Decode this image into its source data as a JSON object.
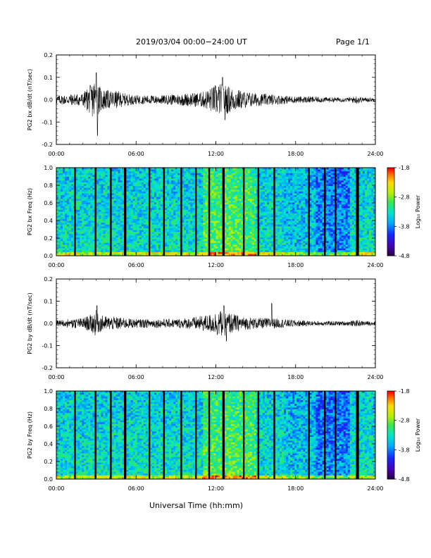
{
  "header": {
    "title": "2019/03/04  00:00−24:00 UT",
    "page": "Page 1/1"
  },
  "footer": {
    "xlabel": "Universal Time (hh:mm)"
  },
  "colorbar": {
    "label": "Log₁₀ Power",
    "ticks": [
      "-1.8",
      "-2.8",
      "-3.8",
      "-4.8"
    ],
    "range": [
      -4.8,
      -1.8
    ]
  },
  "chart_data": [
    {
      "type": "line",
      "ylabel": "PG2 bx dB/dt (nT/sec)",
      "xlabel": "",
      "x_ticks": [
        "00:00",
        "06:00",
        "12:00",
        "18:00",
        "24:00"
      ],
      "xlim": [
        0,
        24
      ],
      "ylim": [
        -0.2,
        0.2
      ],
      "y_ticks": [
        "0.2",
        "0.1",
        "0.0",
        "-0.1",
        "-0.2"
      ],
      "series": [
        {
          "x": [
            0,
            1,
            2,
            2.6,
            3.0,
            3.1,
            3.5,
            4,
            4.6,
            5,
            6,
            7,
            8,
            9,
            10,
            11,
            11.8,
            12,
            12.5,
            13,
            13.5,
            14,
            15,
            16,
            17,
            18,
            19,
            20,
            21,
            22,
            22.7,
            23,
            24
          ],
          "amp": [
            0.02,
            0.025,
            0.03,
            0.07,
            0.11,
            0.07,
            0.05,
            0.04,
            0.04,
            0.03,
            0.02,
            0.02,
            0.02,
            0.025,
            0.03,
            0.035,
            0.06,
            0.07,
            0.075,
            0.06,
            0.05,
            0.04,
            0.03,
            0.025,
            0.02,
            0.015,
            0.015,
            0.012,
            0.01,
            0.01,
            0.02,
            0.01,
            0.01
          ],
          "peaks": [
            [
              3.0,
              0.12
            ],
            [
              3.1,
              -0.16
            ],
            [
              12.5,
              0.1
            ],
            [
              12.7,
              -0.09
            ]
          ]
        }
      ]
    },
    {
      "type": "heatmap",
      "ylabel": "PG2 bx Freq (Hz)",
      "x_ticks": [
        "00:00",
        "06:00",
        "12:00",
        "18:00",
        "24:00"
      ],
      "xlim": [
        0,
        24
      ],
      "ylim": [
        0,
        1.0
      ],
      "y_ticks": [
        "1.0",
        "0.8",
        "0.6",
        "0.4",
        "0.2",
        "0.0"
      ],
      "gaps_hours": [
        1.4,
        2.95,
        4.1,
        5.15,
        5.2,
        7.0,
        8.1,
        9.4,
        10.5,
        11.5,
        12.55,
        12.6,
        14.1,
        15.2,
        16.4,
        19.0,
        20.2,
        21.0,
        22.6,
        22.7
      ]
    },
    {
      "type": "line",
      "ylabel": "PG2 by dB/dt (nT/sec)",
      "xlabel": "",
      "x_ticks": [
        "00:00",
        "06:00",
        "12:00",
        "18:00",
        "24:00"
      ],
      "xlim": [
        0,
        24
      ],
      "ylim": [
        -0.2,
        0.2
      ],
      "y_ticks": [
        "0.2",
        "0.1",
        "0.0",
        "-0.1",
        "-0.2"
      ],
      "series": [
        {
          "x": [
            0,
            1,
            2,
            2.6,
            3.0,
            3.1,
            3.5,
            4,
            4.6,
            5,
            6,
            7,
            8,
            9,
            10,
            11,
            11.8,
            12,
            12.5,
            13,
            13.5,
            14,
            15,
            16,
            17,
            18,
            19,
            20,
            21,
            22,
            22.7,
            23,
            24
          ],
          "amp": [
            0.015,
            0.02,
            0.025,
            0.04,
            0.06,
            0.045,
            0.035,
            0.03,
            0.03,
            0.025,
            0.02,
            0.02,
            0.02,
            0.02,
            0.025,
            0.035,
            0.045,
            0.055,
            0.06,
            0.05,
            0.04,
            0.03,
            0.025,
            0.025,
            0.02,
            0.015,
            0.012,
            0.01,
            0.01,
            0.01,
            0.015,
            0.01,
            0.01
          ],
          "peaks": [
            [
              3.05,
              0.08
            ],
            [
              12.6,
              0.08
            ],
            [
              12.8,
              -0.08
            ],
            [
              16.2,
              0.09
            ]
          ]
        }
      ]
    },
    {
      "type": "heatmap",
      "ylabel": "PG2 by Freq (Hz)",
      "x_ticks": [
        "00:00",
        "06:00",
        "12:00",
        "18:00",
        "24:00"
      ],
      "xlim": [
        0,
        24
      ],
      "ylim": [
        0,
        1.0
      ],
      "y_ticks": [
        "1.0",
        "0.8",
        "0.6",
        "0.4",
        "0.2",
        "0.0"
      ],
      "gaps_hours": [
        1.4,
        2.95,
        4.1,
        5.15,
        5.2,
        7.0,
        8.1,
        9.4,
        10.5,
        11.5,
        12.55,
        12.6,
        14.1,
        15.2,
        16.4,
        19.0,
        20.2,
        21.0,
        22.6,
        22.7
      ]
    }
  ]
}
